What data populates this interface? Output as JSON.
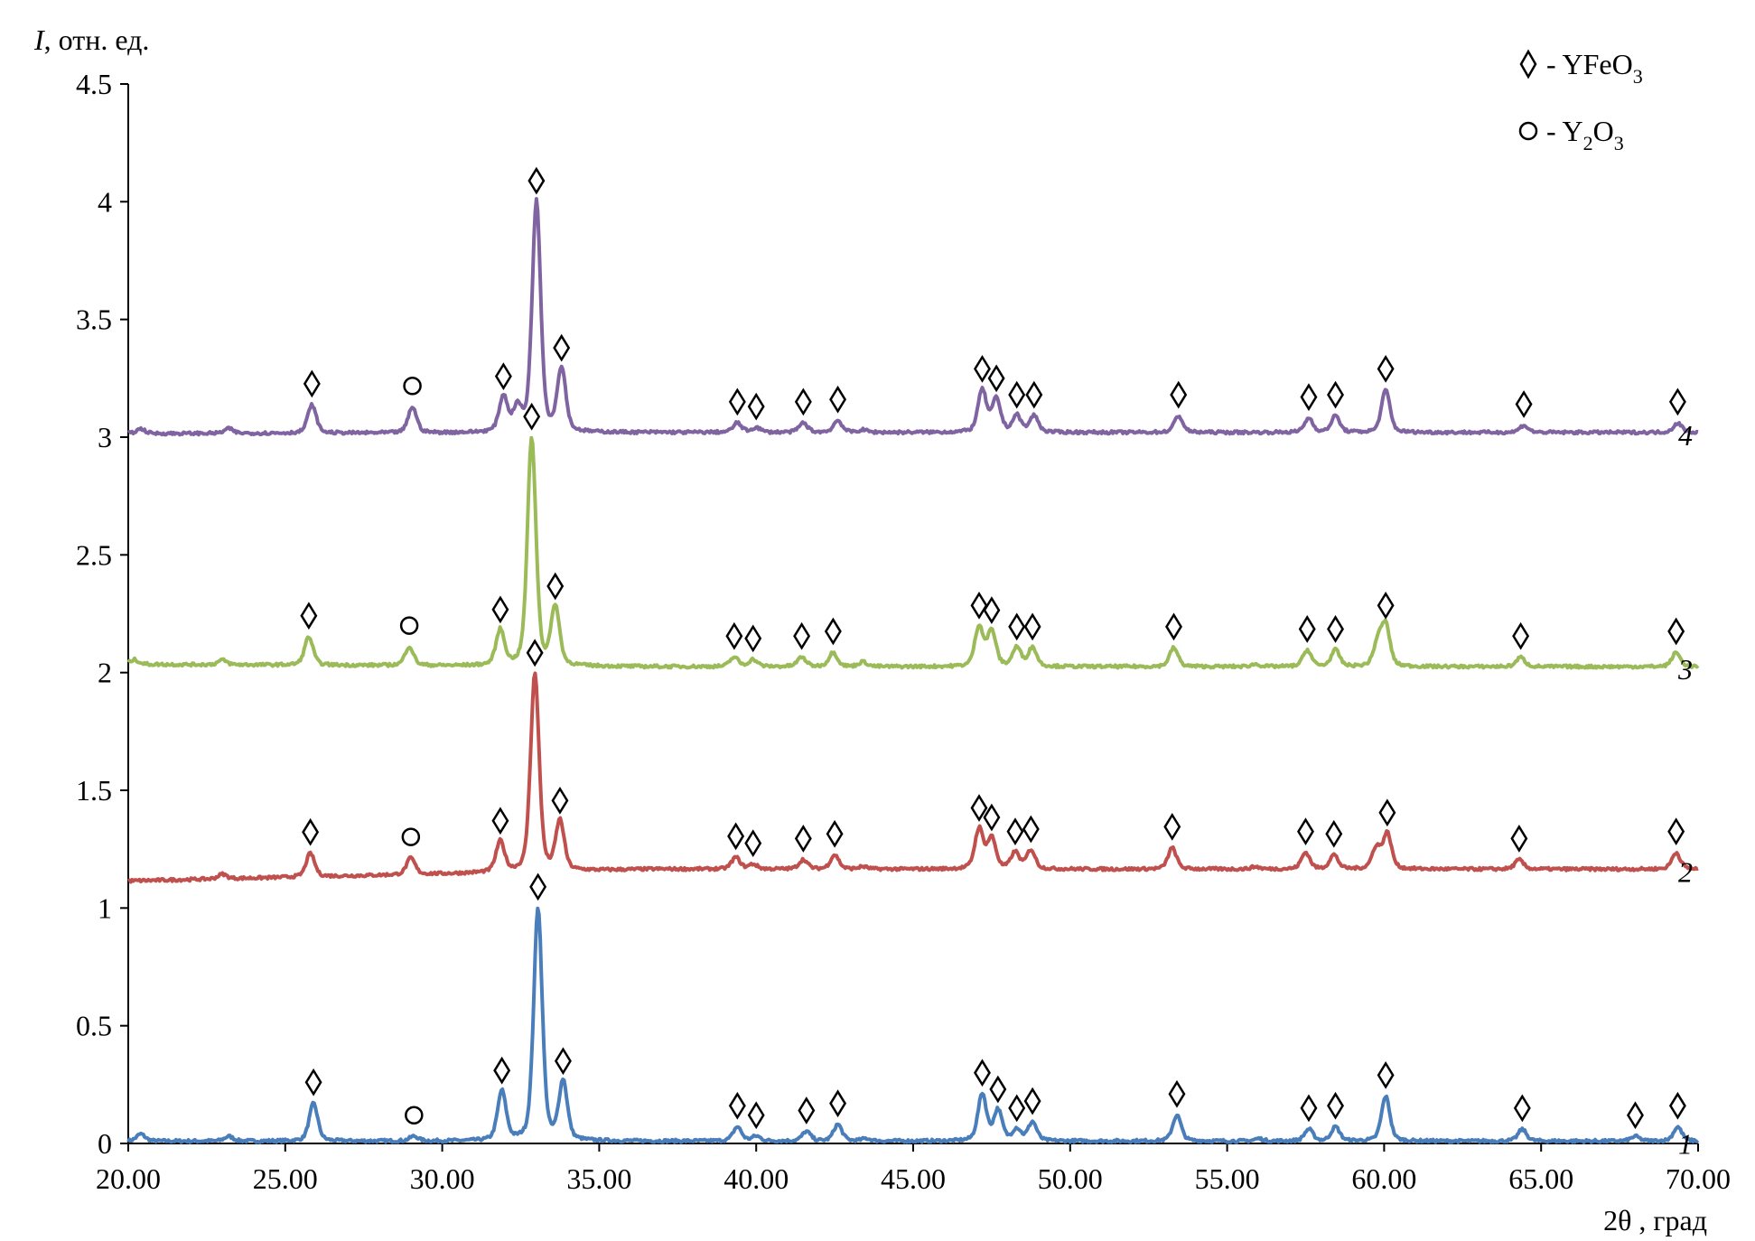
{
  "chart_data": {
    "type": "line",
    "title": "",
    "ylabel_italic": "I",
    "ylabel_rest": ", отн. ед.",
    "xlabel": "2θ , град",
    "xlim": [
      20,
      70
    ],
    "ylim": [
      0,
      4.5
    ],
    "grid": false,
    "x_ticks": [
      20,
      25,
      30,
      35,
      40,
      45,
      50,
      55,
      60,
      65,
      70
    ],
    "x_tick_labels": [
      "20.00",
      "25.00",
      "30.00",
      "35.00",
      "40.00",
      "45.00",
      "50.00",
      "55.00",
      "60.00",
      "65.00",
      "70.00"
    ],
    "y_ticks": [
      0,
      0.5,
      1,
      1.5,
      2,
      2.5,
      3,
      3.5,
      4,
      4.5
    ],
    "y_tick_labels": [
      "0",
      "0.5",
      "1",
      "1.5",
      "2",
      "2.5",
      "3",
      "3.5",
      "4",
      "4.5"
    ],
    "legend": {
      "placement": "top-right",
      "entries": [
        {
          "symbol": "diamond",
          "dash": "-",
          "main": "YFeO",
          "sub": "3",
          "main2": "",
          "sub2": ""
        },
        {
          "symbol": "circle",
          "dash": "-",
          "main": "Y",
          "sub": "2",
          "main2": "O",
          "sub2": "3"
        }
      ]
    },
    "series": [
      {
        "name": "1",
        "color": "#4a7ebb",
        "baseline": [
          0.01,
          0.01
        ],
        "peaks": [
          [
            20.4,
            0.03,
            null
          ],
          [
            23.2,
            0.02,
            null
          ],
          [
            25.9,
            0.16,
            "d"
          ],
          [
            29.1,
            0.02,
            "o"
          ],
          [
            31.9,
            0.21,
            "d"
          ],
          [
            33.05,
            0.99,
            "d"
          ],
          [
            33.85,
            0.25,
            "d"
          ],
          [
            39.4,
            0.06,
            "d"
          ],
          [
            40.0,
            0.02,
            "d"
          ],
          [
            41.6,
            0.04,
            "d"
          ],
          [
            42.6,
            0.07,
            "d"
          ],
          [
            43.5,
            0.01,
            null
          ],
          [
            47.2,
            0.2,
            "d"
          ],
          [
            47.7,
            0.13,
            "d"
          ],
          [
            48.3,
            0.05,
            "d"
          ],
          [
            48.8,
            0.08,
            "d"
          ],
          [
            53.4,
            0.11,
            "d"
          ],
          [
            56.0,
            0.01,
            null
          ],
          [
            57.6,
            0.05,
            "d"
          ],
          [
            58.45,
            0.06,
            "d"
          ],
          [
            60.05,
            0.19,
            "d"
          ],
          [
            64.4,
            0.05,
            "d"
          ],
          [
            68.0,
            0.02,
            "d"
          ],
          [
            69.35,
            0.06,
            "d"
          ]
        ]
      },
      {
        "name": "2",
        "color": "#c0504d",
        "baseline": [
          1.115,
          1.165
        ],
        "peaks": [
          [
            23.0,
            0.02,
            null
          ],
          [
            25.8,
            0.1,
            "d"
          ],
          [
            29.0,
            0.07,
            "o"
          ],
          [
            31.85,
            0.13,
            "d"
          ],
          [
            32.95,
            0.84,
            "d"
          ],
          [
            33.75,
            0.21,
            "d"
          ],
          [
            39.35,
            0.05,
            "d"
          ],
          [
            39.9,
            0.02,
            "d"
          ],
          [
            41.5,
            0.04,
            "d"
          ],
          [
            42.5,
            0.06,
            "d"
          ],
          [
            43.4,
            0.01,
            null
          ],
          [
            47.1,
            0.17,
            "d"
          ],
          [
            47.5,
            0.13,
            "d"
          ],
          [
            48.25,
            0.07,
            "d"
          ],
          [
            48.75,
            0.08,
            "d"
          ],
          [
            53.25,
            0.09,
            "d"
          ],
          [
            55.9,
            0.01,
            null
          ],
          [
            57.5,
            0.07,
            "d"
          ],
          [
            58.4,
            0.06,
            "d"
          ],
          [
            59.75,
            0.09,
            null
          ],
          [
            60.1,
            0.15,
            "d"
          ],
          [
            64.3,
            0.04,
            "d"
          ],
          [
            69.3,
            0.07,
            "d"
          ]
        ]
      },
      {
        "name": "3",
        "color": "#9bbb59",
        "baseline": [
          2.035,
          2.025
        ],
        "peaks": [
          [
            20.2,
            0.02,
            null
          ],
          [
            23.0,
            0.02,
            null
          ],
          [
            25.75,
            0.12,
            "d"
          ],
          [
            28.95,
            0.08,
            "o"
          ],
          [
            31.85,
            0.15,
            "d"
          ],
          [
            32.85,
            0.97,
            "d"
          ],
          [
            33.6,
            0.25,
            "d"
          ],
          [
            39.3,
            0.04,
            "d"
          ],
          [
            39.9,
            0.03,
            "d"
          ],
          [
            41.45,
            0.04,
            "d"
          ],
          [
            42.45,
            0.06,
            "d"
          ],
          [
            43.4,
            0.02,
            null
          ],
          [
            47.1,
            0.17,
            "d"
          ],
          [
            47.5,
            0.15,
            "d"
          ],
          [
            48.3,
            0.08,
            "d"
          ],
          [
            48.8,
            0.08,
            "d"
          ],
          [
            53.3,
            0.08,
            "d"
          ],
          [
            55.9,
            0.01,
            null
          ],
          [
            57.55,
            0.07,
            "d"
          ],
          [
            58.45,
            0.07,
            "d"
          ],
          [
            59.8,
            0.1,
            null
          ],
          [
            60.05,
            0.17,
            "d"
          ],
          [
            64.35,
            0.04,
            "d"
          ],
          [
            69.3,
            0.06,
            "d"
          ]
        ]
      },
      {
        "name": "4",
        "color": "#8064a2",
        "baseline": [
          3.015,
          3.02
        ],
        "peaks": [
          [
            20.4,
            0.02,
            null
          ],
          [
            23.2,
            0.02,
            null
          ],
          [
            25.85,
            0.12,
            "d"
          ],
          [
            29.05,
            0.11,
            "o"
          ],
          [
            31.95,
            0.15,
            "d"
          ],
          [
            32.4,
            0.1,
            null
          ],
          [
            33.0,
            0.98,
            "d"
          ],
          [
            33.8,
            0.27,
            "d"
          ],
          [
            39.4,
            0.04,
            "d"
          ],
          [
            40.0,
            0.02,
            "d"
          ],
          [
            41.5,
            0.04,
            "d"
          ],
          [
            42.6,
            0.05,
            "d"
          ],
          [
            43.4,
            0.01,
            null
          ],
          [
            47.2,
            0.18,
            "d"
          ],
          [
            47.65,
            0.14,
            "d"
          ],
          [
            48.3,
            0.07,
            "d"
          ],
          [
            48.85,
            0.07,
            "d"
          ],
          [
            53.45,
            0.07,
            "d"
          ],
          [
            57.6,
            0.06,
            "d"
          ],
          [
            58.45,
            0.07,
            "d"
          ],
          [
            60.05,
            0.18,
            "d"
          ],
          [
            64.45,
            0.03,
            "d"
          ],
          [
            69.35,
            0.04,
            "d"
          ]
        ]
      }
    ]
  }
}
